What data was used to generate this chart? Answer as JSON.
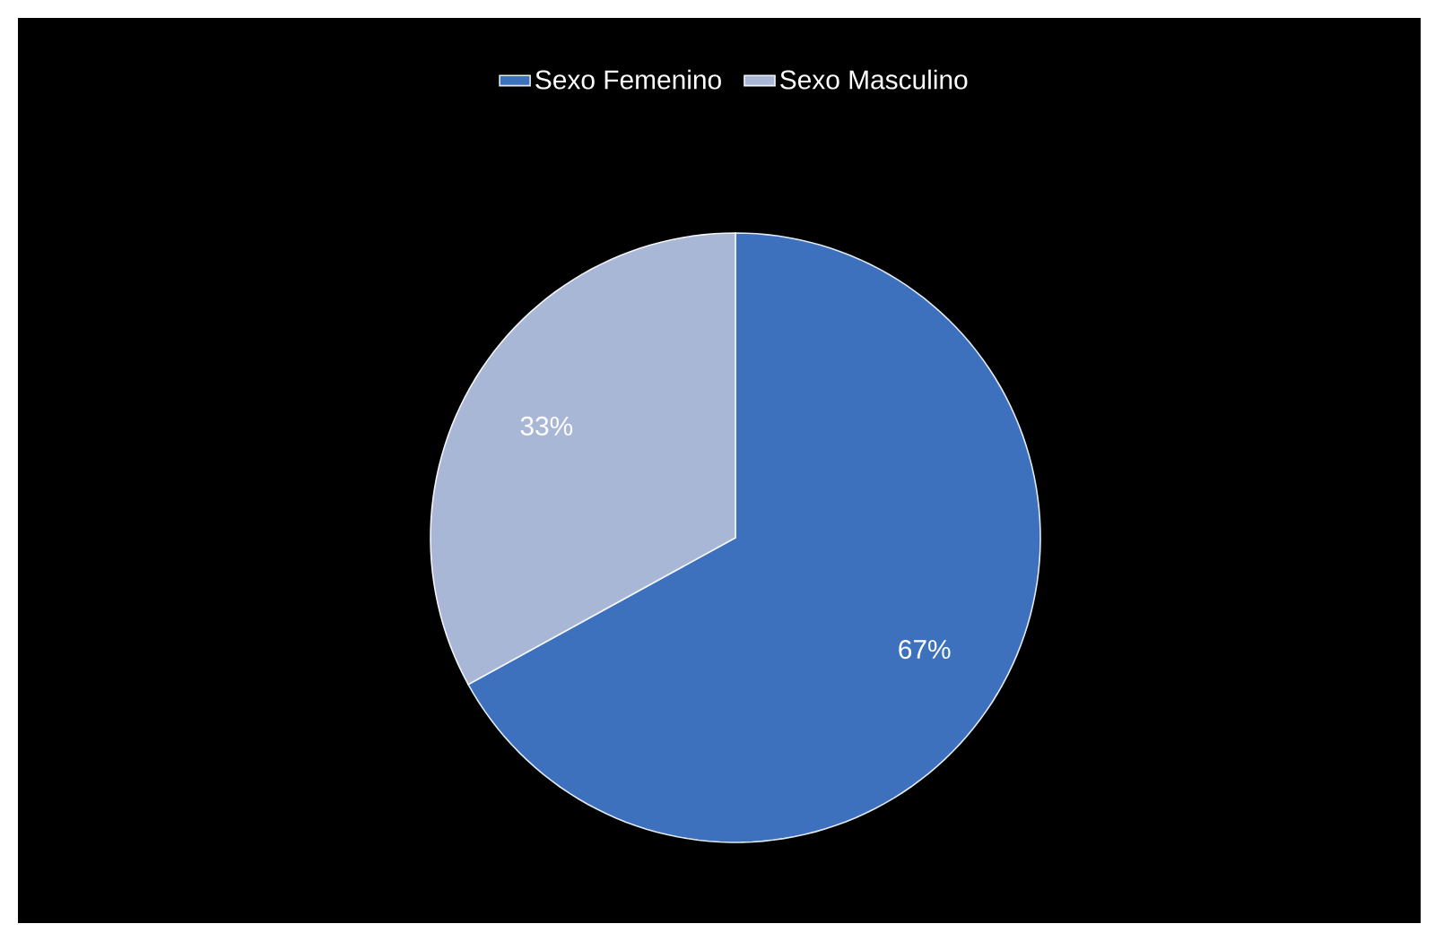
{
  "chart_data": {
    "type": "pie",
    "categories": [
      "Sexo  Femenino",
      "Sexo  Masculino"
    ],
    "values": [
      67,
      33
    ],
    "colors": [
      "#3d71bd",
      "#a9b7d7"
    ],
    "value_labels": [
      "67%",
      "33%"
    ],
    "legend": "top"
  }
}
